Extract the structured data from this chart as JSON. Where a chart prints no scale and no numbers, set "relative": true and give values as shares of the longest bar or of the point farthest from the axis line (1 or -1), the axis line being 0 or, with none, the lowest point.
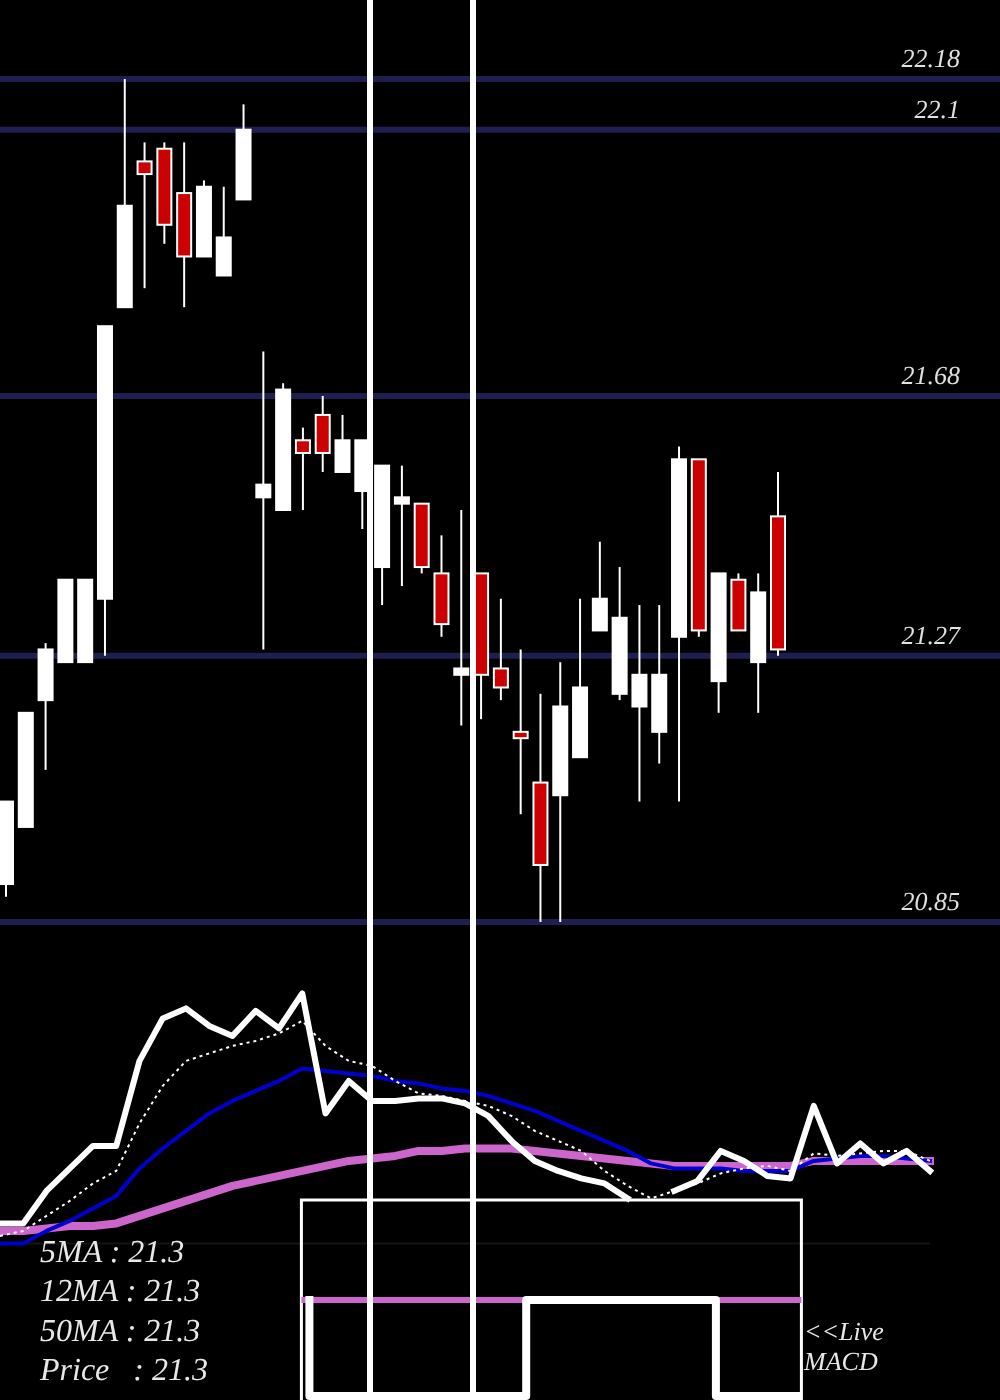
{
  "chart_data": [
    {
      "type": "candlestick",
      "categories": [
        null,
        null,
        null,
        null,
        null,
        null,
        null,
        null,
        null,
        null,
        null,
        null,
        null,
        null,
        null,
        null,
        null,
        null,
        null,
        null,
        null,
        null,
        null,
        null,
        null,
        null,
        null,
        null,
        null,
        null,
        null,
        null,
        null,
        null,
        null,
        null,
        null,
        null,
        null,
        null
      ],
      "ohlc": [
        [
          20.91,
          21.04,
          20.89,
          21.04
        ],
        [
          21.0,
          21.18,
          21.0,
          21.18
        ],
        [
          21.2,
          21.29,
          21.09,
          21.28
        ],
        [
          21.26,
          21.39,
          21.26,
          21.39
        ],
        [
          21.26,
          21.39,
          21.26,
          21.39
        ],
        [
          21.36,
          21.79,
          21.27,
          21.79
        ],
        [
          21.82,
          22.18,
          21.82,
          21.98
        ],
        [
          22.05,
          22.08,
          21.85,
          22.03
        ],
        [
          22.07,
          22.08,
          21.92,
          21.95
        ],
        [
          22.0,
          22.08,
          21.82,
          21.9
        ],
        [
          21.9,
          22.02,
          21.9,
          22.01
        ],
        [
          21.87,
          22.01,
          21.87,
          21.93
        ],
        [
          21.99,
          22.14,
          21.99,
          22.1
        ],
        [
          21.52,
          21.75,
          21.28,
          21.54
        ],
        [
          21.5,
          21.7,
          21.5,
          21.69
        ],
        [
          21.61,
          21.63,
          21.5,
          21.59
        ],
        [
          21.65,
          21.68,
          21.56,
          21.59
        ],
        [
          21.56,
          21.65,
          21.56,
          21.61
        ],
        [
          21.53,
          21.61,
          21.47,
          21.61
        ],
        [
          21.41,
          21.57,
          21.35,
          21.57
        ],
        [
          21.51,
          21.57,
          21.38,
          21.52
        ],
        [
          21.51,
          21.51,
          21.4,
          21.41
        ],
        [
          21.4,
          21.46,
          21.3,
          21.32
        ],
        [
          21.24,
          21.5,
          21.16,
          21.25
        ],
        [
          21.4,
          21.4,
          21.17,
          21.24
        ],
        [
          21.25,
          21.36,
          21.2,
          21.22
        ],
        [
          21.15,
          21.28,
          21.02,
          21.14
        ],
        [
          21.07,
          21.21,
          20.85,
          20.94
        ],
        [
          21.05,
          21.26,
          20.85,
          21.19
        ],
        [
          21.11,
          21.36,
          21.11,
          21.22
        ],
        [
          21.31,
          21.45,
          21.31,
          21.36
        ],
        [
          21.21,
          21.41,
          21.2,
          21.33
        ],
        [
          21.19,
          21.35,
          21.04,
          21.24
        ],
        [
          21.15,
          21.35,
          21.1,
          21.24
        ],
        [
          21.3,
          21.6,
          21.04,
          21.58
        ],
        [
          21.58,
          21.58,
          21.3,
          21.31
        ],
        [
          21.23,
          21.4,
          21.18,
          21.4
        ],
        [
          21.39,
          21.4,
          21.31,
          21.31
        ],
        [
          21.26,
          21.4,
          21.18,
          21.37
        ],
        [
          21.49,
          21.56,
          21.27,
          21.28
        ]
      ],
      "colors": [
        "#ffffff",
        "#ffffff",
        "#ffffff",
        "#ffffff",
        "#ffffff",
        "#ffffff",
        "#ffffff",
        "#cc0000",
        "#cc0000",
        "#cc0000",
        "#ffffff",
        "#ffffff",
        "#ffffff",
        "#ffffff",
        "#ffffff",
        "#cc0000",
        "#cc0000",
        "#ffffff",
        "#ffffff",
        "#ffffff",
        "#ffffff",
        "#cc0000",
        "#cc0000",
        "#ffffff",
        "#cc0000",
        "#cc0000",
        "#cc0000",
        "#cc0000",
        "#ffffff",
        "#ffffff",
        "#ffffff",
        "#ffffff",
        "#ffffff",
        "#ffffff",
        "#ffffff",
        "#cc0000",
        "#ffffff",
        "#cc0000",
        "#ffffff",
        "#cc0000"
      ],
      "ylim": [
        20.85,
        22.18
      ],
      "yticks": [
        20.85,
        21.27,
        21.68,
        22.1,
        22.18
      ],
      "grid": "y",
      "tick_labels": "y"
    },
    {
      "type": "line",
      "relative": true,
      "tick_labels": false,
      "categories": [
        null,
        null,
        null,
        null,
        null,
        null,
        null,
        null,
        null,
        null,
        null,
        null,
        null,
        null,
        null,
        null,
        null,
        null,
        null,
        null,
        null,
        null,
        null,
        null,
        null,
        null,
        null,
        null,
        null,
        null,
        null,
        null,
        null,
        null,
        null,
        null,
        null,
        null,
        null,
        null,
        null
      ],
      "series": [
        {
          "color": "#cc66cc",
          "values": [
            0.05,
            0.05,
            0.06,
            0.07,
            0.07,
            0.08,
            0.11,
            0.14,
            0.17,
            0.2,
            0.23,
            0.25,
            0.27,
            0.29,
            0.31,
            0.33,
            0.34,
            0.35,
            0.37,
            0.37,
            0.38,
            0.38,
            0.38,
            0.37,
            0.36,
            0.35,
            0.34,
            0.33,
            0.32,
            0.31,
            0.31,
            0.31,
            0.31,
            0.31,
            0.31,
            0.33,
            0.33,
            0.33,
            0.33,
            0.33,
            0.33
          ]
        },
        {
          "color": "#0000cc",
          "values": [
            0,
            0,
            0.05,
            0.09,
            0.14,
            0.19,
            0.3,
            0.38,
            0.45,
            0.52,
            0.57,
            0.61,
            0.65,
            0.7,
            0.69,
            0.68,
            0.67,
            0.65,
            0.64,
            0.62,
            0.61,
            0.59,
            0.56,
            0.53,
            0.49,
            0.45,
            0.41,
            0.37,
            0.32,
            0.3,
            0.3,
            0.3,
            0.29,
            0.29,
            0.29,
            0.33,
            0.34,
            0.35,
            0.35,
            0.34,
            0.33
          ]
        },
        {
          "color": "#ffffff",
          "line_style": "dotted",
          "values": [
            0.03,
            0.05,
            0.11,
            0.17,
            0.24,
            0.29,
            0.48,
            0.63,
            0.73,
            0.76,
            0.79,
            0.81,
            0.84,
            0.89,
            0.79,
            0.73,
            0.71,
            0.65,
            0.6,
            0.59,
            0.57,
            0.55,
            0.51,
            0.45,
            0.41,
            0.37,
            0.29,
            0.23,
            0.18,
            0.21,
            0.24,
            0.28,
            0.3,
            0.31,
            0.29,
            0.36,
            0.35,
            0.36,
            0.37,
            0.37,
            0.33
          ]
        },
        {
          "color": "#ffffff",
          "values": [
            0.08,
            0.08,
            0.21,
            0.3,
            0.39,
            0.39,
            0.73,
            0.9,
            0.94,
            0.87,
            0.83,
            0.93,
            0.86,
            1,
            0.52,
            0.65,
            0.57,
            0.57,
            0.58,
            0.58,
            0.56,
            0.51,
            0.41,
            0.33,
            0.29,
            0.26,
            0.24,
            0.18,
            null,
            0.21,
            0.25,
            0.37,
            0.33,
            0.27,
            0.26,
            0.55,
            0.32,
            0.4,
            0.32,
            0.37,
            0.29
          ]
        }
      ],
      "annotations": [
        "5MA : 21.3",
        "12MA : 21.3",
        "50MA : 21.3",
        "Price   : 21.3"
      ]
    },
    {
      "type": "step",
      "relative": true,
      "tick_labels": false,
      "categories": [
        null,
        null,
        null,
        null,
        null,
        null,
        null,
        null,
        null,
        null,
        null,
        null,
        null,
        null,
        null,
        null,
        null,
        null,
        null
      ],
      "series": [
        {
          "color": "#ffffff",
          "values": [
            0,
            -1,
            -1,
            -1,
            -1,
            -1,
            -1,
            -1,
            -1,
            0,
            0,
            0,
            0,
            0,
            0,
            0,
            -1,
            -1,
            -1
          ]
        }
      ],
      "ref_lines": [
        {
          "axis": "y",
          "value": 0,
          "color": "#cc66cc"
        }
      ],
      "annotations": [
        "<<Live MACD"
      ]
    }
  ]
}
